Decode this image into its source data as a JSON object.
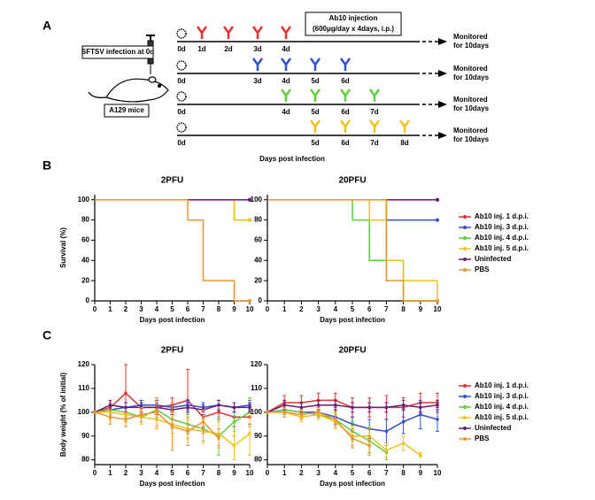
{
  "diagram": {
    "label": "A",
    "infection_label": "SFTSV infection at 0d",
    "mouse_label": "A129 mice",
    "injection_title": "Ab10 injection",
    "injection_dose": "(600μg/day x 4days, i.p.)",
    "x_label": "Days post infection",
    "rows": [
      {
        "start": "0d",
        "color": "#e8312f",
        "doses": [
          "1d",
          "2d",
          "3d",
          "4d"
        ],
        "monitor": [
          "Monitored",
          "for 10days"
        ]
      },
      {
        "start": "0d",
        "color": "#2e4fd6",
        "doses": [
          "3d",
          "4d",
          "5d",
          "6d"
        ],
        "monitor": [
          "Monitored",
          "for 10days"
        ]
      },
      {
        "start": "0d",
        "color": "#5ccf3a",
        "doses": [
          "4d",
          "5d",
          "6d",
          "7d"
        ],
        "monitor": [
          "Monitored",
          "for 10days"
        ]
      },
      {
        "start": "0d",
        "color": "#f2c21b",
        "doses": [
          "5d",
          "6d",
          "7d",
          "8d"
        ],
        "monitor": [
          "Monitored",
          "for 10days"
        ]
      }
    ]
  },
  "panel_labels": [
    "B",
    "C"
  ],
  "chart_data": [
    {
      "type": "step",
      "title": "2PFU",
      "x_label": "Days post infection",
      "y_label": "Survival (%)",
      "x": [
        0,
        1,
        2,
        3,
        4,
        5,
        6,
        7,
        8,
        9,
        10
      ],
      "xlim": [
        0,
        10
      ],
      "xticks": [
        0,
        1,
        2,
        3,
        4,
        5,
        6,
        7,
        8,
        9,
        10
      ],
      "ylim": [
        0,
        105
      ],
      "yticks": [
        0,
        20,
        40,
        60,
        80,
        100
      ],
      "series": [
        {
          "name": "Ab10 inj. 1 d.p.i.",
          "color": "#e8312f",
          "values": [
            100,
            100,
            100,
            100,
            100,
            100,
            100,
            100,
            100,
            100,
            100
          ]
        },
        {
          "name": "Ab10 inj. 3 d.p.i.",
          "color": "#2e4fd6",
          "values": [
            100,
            100,
            100,
            100,
            100,
            100,
            100,
            100,
            100,
            100,
            100
          ]
        },
        {
          "name": "Ab10 inj. 4 d.p.i.",
          "color": "#5ccf3a",
          "values": [
            100,
            100,
            100,
            100,
            100,
            100,
            100,
            100,
            100,
            80,
            80
          ]
        },
        {
          "name": "Ab10 inj. 5 d.p.i.",
          "color": "#f2c21b",
          "values": [
            100,
            100,
            100,
            100,
            100,
            100,
            100,
            100,
            100,
            80,
            80
          ]
        },
        {
          "name": "Uninfected",
          "color": "#6a1b7a",
          "values": [
            100,
            100,
            100,
            100,
            100,
            100,
            100,
            100,
            100,
            100,
            100
          ]
        },
        {
          "name": "PBS",
          "color": "#f0922b",
          "values": [
            100,
            100,
            100,
            100,
            100,
            100,
            80,
            20,
            20,
            0,
            0
          ]
        }
      ]
    },
    {
      "type": "step",
      "title": "20PFU",
      "x_label": "Days post infection",
      "x": [
        0,
        1,
        2,
        3,
        4,
        5,
        6,
        7,
        8,
        9,
        10
      ],
      "xlim": [
        0,
        10
      ],
      "xticks": [
        0,
        1,
        2,
        3,
        4,
        5,
        6,
        7,
        8,
        9,
        10
      ],
      "ylim": [
        0,
        105
      ],
      "yticks": [
        0,
        20,
        40,
        60,
        80,
        100
      ],
      "series": [
        {
          "name": "Ab10 inj. 1 d.p.i.",
          "color": "#e8312f",
          "values": [
            100,
            100,
            100,
            100,
            100,
            100,
            100,
            100,
            100,
            100,
            100
          ]
        },
        {
          "name": "Ab10 inj. 3 d.p.i.",
          "color": "#2e4fd6",
          "values": [
            100,
            100,
            100,
            100,
            100,
            100,
            100,
            80,
            80,
            80,
            80
          ]
        },
        {
          "name": "Ab10 inj. 4 d.p.i.",
          "color": "#5ccf3a",
          "values": [
            100,
            100,
            100,
            100,
            100,
            80,
            40,
            40,
            0,
            0,
            0
          ]
        },
        {
          "name": "Ab10 inj. 5 d.p.i.",
          "color": "#f2c21b",
          "values": [
            100,
            100,
            100,
            100,
            100,
            100,
            80,
            40,
            20,
            20,
            0
          ]
        },
        {
          "name": "Uninfected",
          "color": "#6a1b7a",
          "values": [
            100,
            100,
            100,
            100,
            100,
            100,
            100,
            100,
            100,
            100,
            100
          ]
        },
        {
          "name": "PBS",
          "color": "#f0922b",
          "values": [
            100,
            100,
            100,
            100,
            100,
            100,
            100,
            20,
            0,
            0,
            0
          ]
        }
      ]
    },
    {
      "type": "line",
      "title": "2PFU",
      "x_label": "Days post infection",
      "y_label": "Body weight (% of initial)",
      "x": [
        0,
        1,
        2,
        3,
        4,
        5,
        6,
        7,
        8,
        9,
        10
      ],
      "xlim": [
        0,
        10
      ],
      "xticks": [
        0,
        1,
        2,
        3,
        4,
        5,
        6,
        7,
        8,
        9,
        10
      ],
      "ylim": [
        78,
        120
      ],
      "yticks": [
        80,
        90,
        100,
        110,
        120
      ],
      "series": [
        {
          "name": "Ab10 inj. 1 d.p.i.",
          "color": "#e8312f",
          "values": [
            100,
            102,
            108,
            102,
            102,
            103,
            105,
            98,
            100,
            98,
            98
          ],
          "errors": [
            0,
            2,
            12,
            3,
            3,
            3,
            13,
            4,
            3,
            4,
            3
          ]
        },
        {
          "name": "Ab10 inj. 3 d.p.i.",
          "color": "#2e4fd6",
          "values": [
            100,
            101,
            102,
            103,
            103,
            102,
            103,
            102,
            103,
            102,
            103
          ],
          "errors": [
            0,
            2,
            2,
            2,
            2,
            2,
            2,
            2,
            2,
            2,
            2
          ]
        },
        {
          "name": "Ab10 inj. 4 d.p.i.",
          "color": "#5ccf3a",
          "values": [
            100,
            101,
            100,
            98,
            101,
            97,
            95,
            93,
            90,
            96,
            100
          ],
          "errors": [
            0,
            2,
            2,
            3,
            3,
            4,
            4,
            5,
            8,
            6,
            6
          ]
        },
        {
          "name": "Ab10 inj. 5 d.p.i.",
          "color": "#f2c21b",
          "values": [
            100,
            100,
            99,
            98,
            97,
            95,
            93,
            92,
            91,
            86,
            91
          ],
          "errors": [
            0,
            3,
            3,
            3,
            4,
            4,
            4,
            5,
            5,
            6,
            9
          ]
        },
        {
          "name": "Uninfected",
          "color": "#6a1b7a",
          "values": [
            100,
            103,
            102,
            102,
            102,
            101,
            102,
            101,
            103,
            102,
            102
          ],
          "errors": [
            0,
            2,
            2,
            2,
            2,
            2,
            2,
            2,
            2,
            2,
            2
          ]
        },
        {
          "name": "PBS",
          "color": "#f0922b",
          "values": [
            100,
            98,
            97,
            99,
            100,
            94,
            92,
            96,
            89,
            null,
            null
          ],
          "errors": [
            0,
            3,
            3,
            3,
            6,
            10,
            6,
            5,
            4,
            null,
            null
          ]
        }
      ]
    },
    {
      "type": "line",
      "title": "20PFU",
      "x_label": "Days post infection",
      "x": [
        0,
        1,
        2,
        3,
        4,
        5,
        6,
        7,
        8,
        9,
        10
      ],
      "xlim": [
        0,
        10
      ],
      "xticks": [
        0,
        1,
        2,
        3,
        4,
        5,
        6,
        7,
        8,
        9,
        10
      ],
      "ylim": [
        78,
        120
      ],
      "yticks": [
        80,
        90,
        100,
        110,
        120
      ],
      "series": [
        {
          "name": "Ab10 inj. 1 d.p.i.",
          "color": "#e8312f",
          "values": [
            100,
            104,
            104,
            105,
            105,
            102,
            102,
            102,
            102,
            104,
            104
          ],
          "errors": [
            0,
            3,
            3,
            3,
            3,
            4,
            4,
            5,
            4,
            4,
            4
          ]
        },
        {
          "name": "Ab10 inj. 3 d.p.i.",
          "color": "#2e4fd6",
          "values": [
            100,
            101,
            100,
            100,
            98,
            95,
            93,
            92,
            96,
            99,
            97
          ],
          "errors": [
            0,
            2,
            2,
            2,
            3,
            3,
            4,
            5,
            5,
            6,
            5
          ]
        },
        {
          "name": "Ab10 inj. 4 d.p.i.",
          "color": "#5ccf3a",
          "values": [
            100,
            101,
            100,
            99,
            97,
            92,
            88,
            83,
            null,
            null,
            null
          ],
          "errors": [
            0,
            2,
            2,
            2,
            3,
            4,
            5,
            3,
            null,
            null,
            null
          ]
        },
        {
          "name": "Ab10 inj. 5 d.p.i.",
          "color": "#f2c21b",
          "values": [
            100,
            100,
            98,
            99,
            96,
            90,
            90,
            84,
            87,
            82,
            null
          ],
          "errors": [
            0,
            2,
            2,
            2,
            3,
            4,
            4,
            3,
            3,
            1,
            null
          ]
        },
        {
          "name": "Uninfected",
          "color": "#6a1b7a",
          "values": [
            100,
            103,
            102,
            103,
            103,
            102,
            102,
            102,
            103,
            102,
            103
          ],
          "errors": [
            0,
            2,
            2,
            2,
            2,
            2,
            2,
            2,
            2,
            2,
            2
          ]
        },
        {
          "name": "PBS",
          "color": "#f0922b",
          "values": [
            100,
            100,
            99,
            100,
            97,
            89,
            86,
            null,
            null,
            null,
            null
          ],
          "errors": [
            0,
            2,
            2,
            2,
            3,
            4,
            4,
            null,
            null,
            null,
            null
          ]
        }
      ]
    }
  ]
}
